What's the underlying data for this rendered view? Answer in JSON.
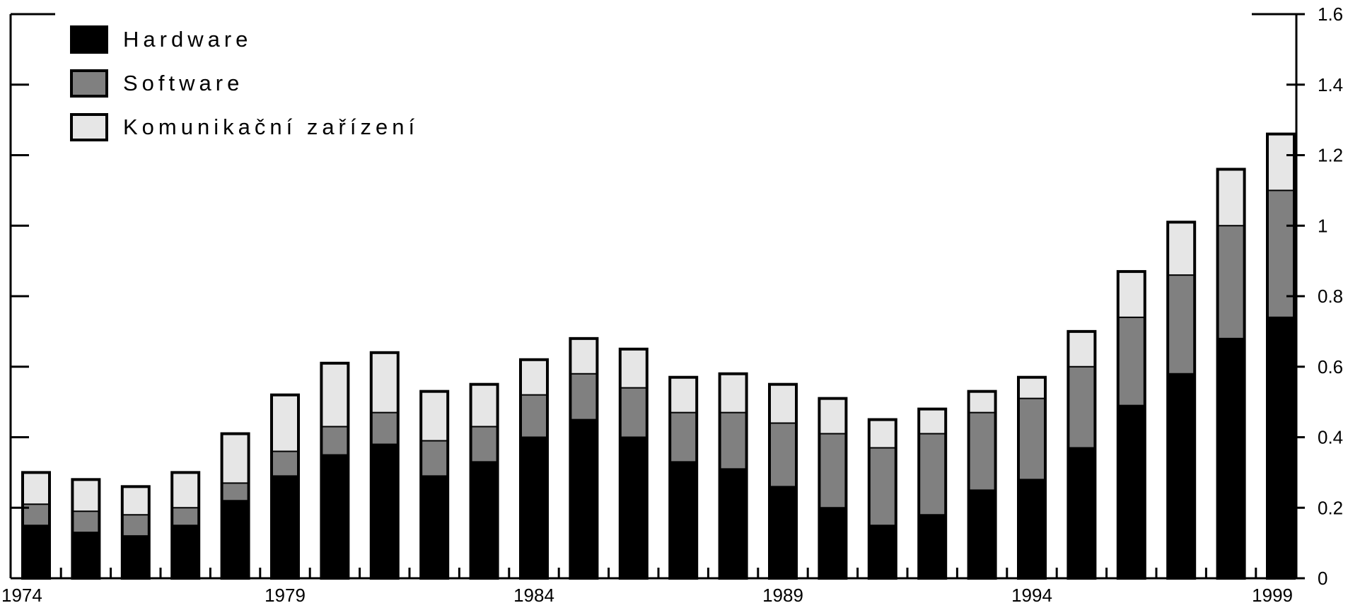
{
  "chart_data": {
    "type": "bar",
    "stacked": true,
    "x": [
      1974,
      1975,
      1976,
      1977,
      1978,
      1979,
      1980,
      1981,
      1982,
      1983,
      1984,
      1985,
      1986,
      1987,
      1988,
      1989,
      1990,
      1991,
      1992,
      1993,
      1994,
      1995,
      1996,
      1997,
      1998,
      1999
    ],
    "x_tick_labels": [
      "1974",
      "1979",
      "1984",
      "1989",
      "1994",
      "1999"
    ],
    "y_tick_labels": [
      "0",
      "0.2",
      "0.4",
      "0.6",
      "0.8",
      "1",
      "1.2",
      "1.4",
      "1.6"
    ],
    "ylim": [
      0,
      1.6
    ],
    "y_axis_side": "right",
    "legend_position": "top-left",
    "grid": false,
    "series": [
      {
        "name": "Hardware",
        "color": "#000000",
        "values": [
          0.15,
          0.13,
          0.12,
          0.15,
          0.22,
          0.29,
          0.35,
          0.38,
          0.29,
          0.33,
          0.4,
          0.45,
          0.4,
          0.33,
          0.31,
          0.26,
          0.2,
          0.15,
          0.18,
          0.25,
          0.28,
          0.37,
          0.49,
          0.58,
          0.68,
          0.74
        ]
      },
      {
        "name": "Software",
        "color": "#808080",
        "values": [
          0.06,
          0.06,
          0.06,
          0.05,
          0.05,
          0.07,
          0.08,
          0.09,
          0.1,
          0.1,
          0.12,
          0.13,
          0.14,
          0.14,
          0.16,
          0.18,
          0.21,
          0.22,
          0.23,
          0.22,
          0.23,
          0.23,
          0.25,
          0.28,
          0.32,
          0.36
        ]
      },
      {
        "name": "Komunikační zařízení",
        "color": "#e6e6e6",
        "values": [
          0.09,
          0.09,
          0.08,
          0.1,
          0.14,
          0.16,
          0.18,
          0.17,
          0.14,
          0.12,
          0.1,
          0.1,
          0.11,
          0.1,
          0.11,
          0.11,
          0.1,
          0.08,
          0.07,
          0.06,
          0.06,
          0.1,
          0.13,
          0.15,
          0.16,
          0.16
        ]
      }
    ]
  }
}
